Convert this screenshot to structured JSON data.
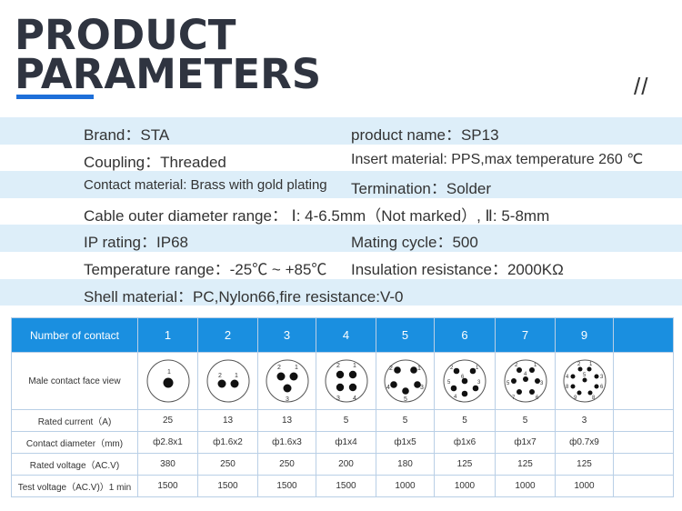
{
  "header": {
    "title_line1": "PRODUCT",
    "title_line2": "PARAMETERS",
    "slashes": "//"
  },
  "params": [
    {
      "a": "Brand：STA",
      "b": "product name：SP13"
    },
    {
      "a": "Coupling：Threaded",
      "b": "Insert material: PPS,max temperature 260 ℃"
    },
    {
      "a": "Contact material: Brass with gold plating",
      "b": "Termination：Solder"
    },
    {
      "a": "Cable outer diameter range：  Ⅰ: 4-6.5mm（Not marked）, Ⅱ: 5-8mm",
      "b": ""
    },
    {
      "a": "IP rating：IP68",
      "b": "Mating cycle：500"
    },
    {
      "a": "Temperature range：-25℃ ~ +85℃",
      "b": "Insulation resistance：2000KΩ"
    },
    {
      "a": "Shell material：PC,Nylon66,fire resistance:V-0",
      "b": ""
    }
  ],
  "table": {
    "header_label": "Number of contact",
    "contacts": [
      "1",
      "2",
      "3",
      "4",
      "5",
      "6",
      "7",
      "9"
    ],
    "face_label": "Male contact face view",
    "rows": [
      {
        "label": "Rated current（A)",
        "values": [
          "25",
          "13",
          "13",
          "5",
          "5",
          "5",
          "5",
          "3"
        ]
      },
      {
        "label": "Contact diameter（mm)",
        "values": [
          "ф2.8x1",
          "ф1.6x2",
          "ф1.6x3",
          "ф1x4",
          "ф1x5",
          "ф1x6",
          "ф1x7",
          "ф0.7x9"
        ]
      },
      {
        "label": "Rated voltage（AC.V)",
        "values": [
          "380",
          "250",
          "250",
          "200",
          "180",
          "125",
          "125",
          "125"
        ]
      },
      {
        "label": "Test voltage（AC.V)）1 min",
        "values": [
          "1500",
          "1500",
          "1500",
          "1500",
          "1000",
          "1000",
          "1000",
          "1000"
        ]
      }
    ]
  }
}
